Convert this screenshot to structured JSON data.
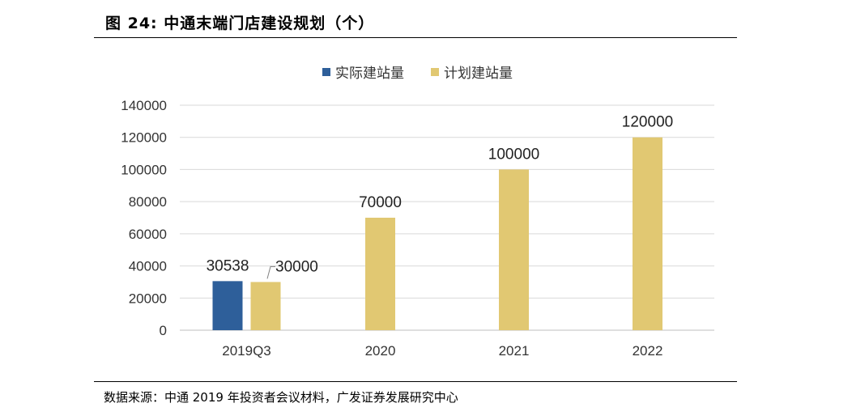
{
  "figure": {
    "title": "图 24: 中通末端门店建设规划（个）",
    "source": "数据来源：中通 2019 年投资者会议材料，广发证券发展研究中心"
  },
  "chart_data": {
    "type": "bar",
    "title": "",
    "xlabel": "",
    "ylabel": "",
    "categories": [
      "2019Q3",
      "2020",
      "2021",
      "2022"
    ],
    "series": [
      {
        "name": "实际建站量",
        "color": "#2e5f9a",
        "values": [
          30538,
          null,
          null,
          null
        ]
      },
      {
        "name": "计划建站量",
        "color": "#e1c872",
        "values": [
          30000,
          70000,
          100000,
          120000
        ]
      }
    ],
    "ylim": [
      0,
      140000
    ],
    "yticks": [
      0,
      20000,
      40000,
      60000,
      80000,
      100000,
      120000,
      140000
    ],
    "grid": true,
    "legend": "top-center",
    "data_labels": true
  }
}
